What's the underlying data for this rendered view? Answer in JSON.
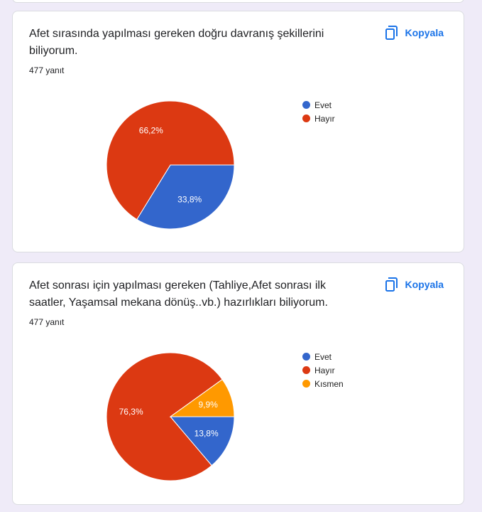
{
  "copy_label": "Kopyala",
  "chart_data": [
    {
      "type": "pie",
      "title": "Afet sırasında yapılması gereken doğru davranış  şekillerini biliyorum.",
      "response_count": "477 yanıt",
      "legend_position": "right",
      "categories": [
        "Evet",
        "Hayır"
      ],
      "values": [
        33.8,
        66.2
      ],
      "labels": [
        "33,8%",
        "66,2%"
      ],
      "colors": [
        "#3366cc",
        "#dc3912"
      ]
    },
    {
      "type": "pie",
      "title": "Afet sonrası için yapılması gereken (Tahliye,Afet sonrası ilk saatler, Yaşamsal mekana dönüş..vb.) hazırlıkları biliyorum.",
      "response_count": "477 yanıt",
      "legend_position": "right",
      "categories": [
        "Evet",
        "Hayır",
        "Kısmen"
      ],
      "values": [
        13.8,
        76.3,
        9.9
      ],
      "labels": [
        "13,8%",
        "76,3%",
        "9,9%"
      ],
      "colors": [
        "#3366cc",
        "#dc3912",
        "#ff9900"
      ]
    }
  ]
}
